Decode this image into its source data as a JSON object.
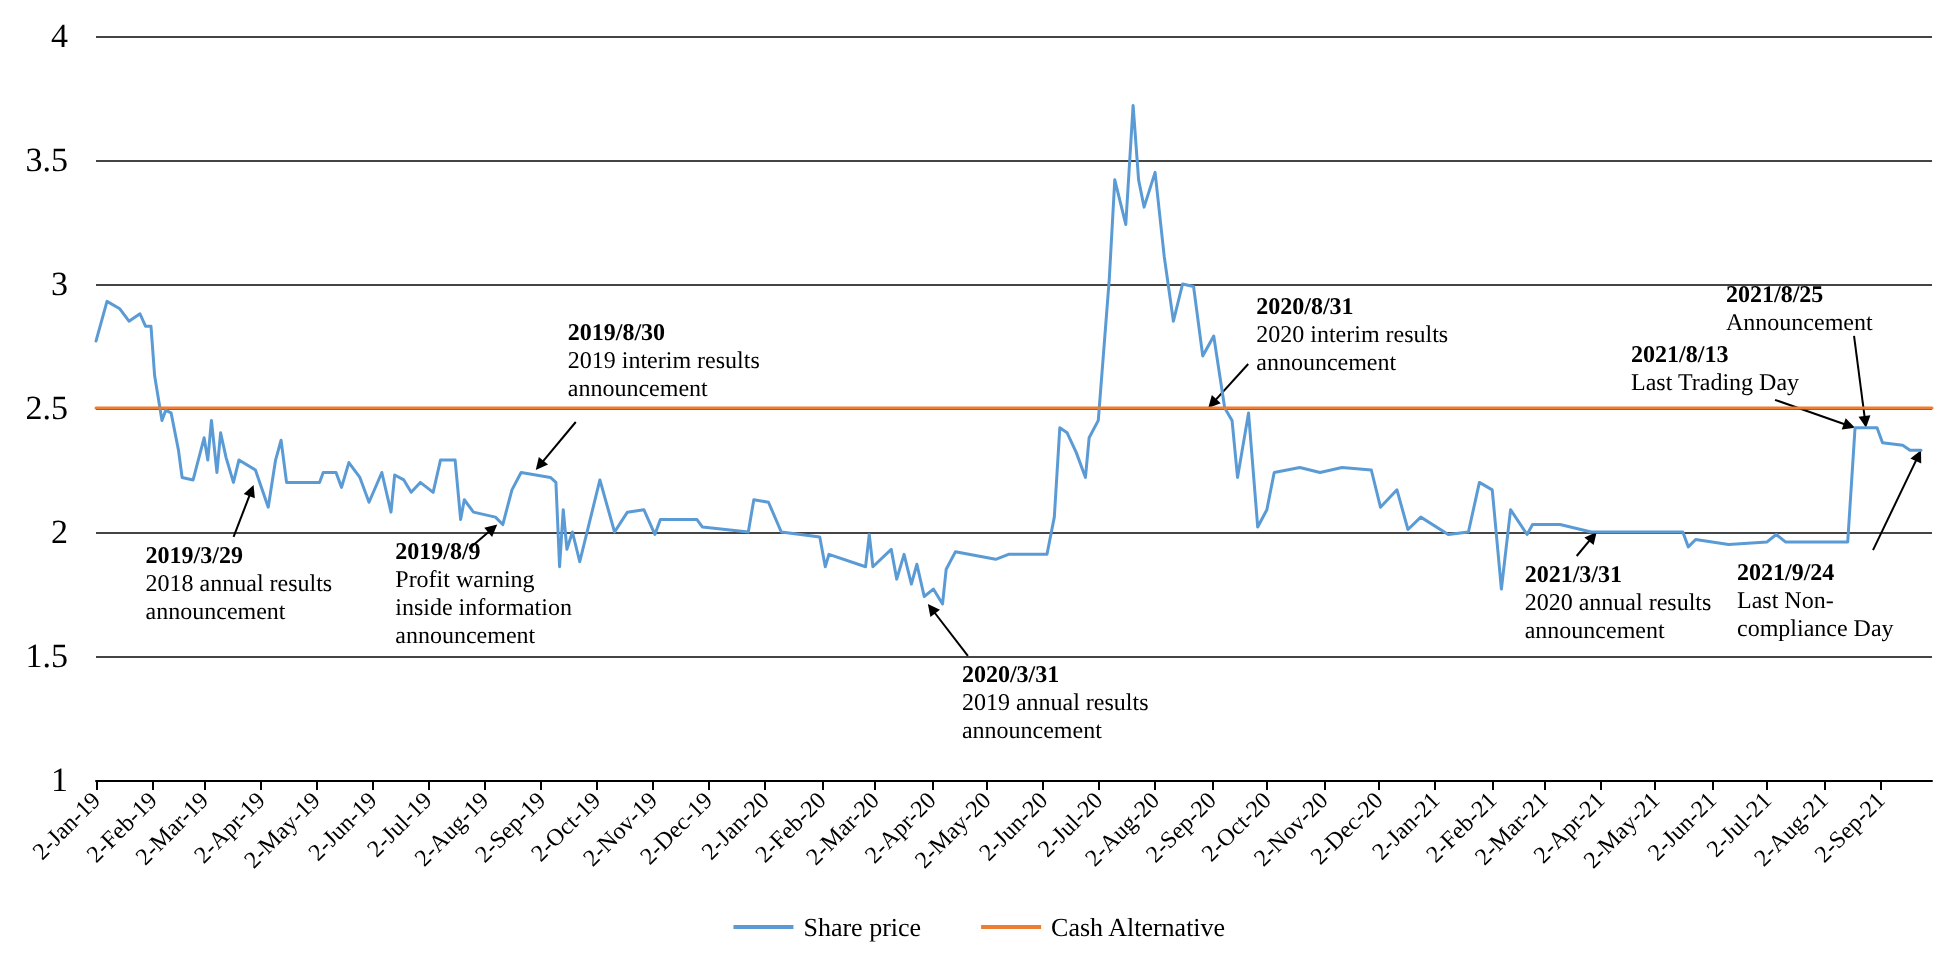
{
  "chart_data": {
    "type": "line",
    "grid": "y",
    "legend": "bottom",
    "marker": "none",
    "line_style": "solid",
    "xlim": [
      "2019-01-02",
      "2021-09-30"
    ],
    "xticks": [
      {
        "value": "2019-01-02",
        "label": "2-Jan-19"
      },
      {
        "value": "2019-02-02",
        "label": "2-Feb-19"
      },
      {
        "value": "2019-03-02",
        "label": "2-Mar-19"
      },
      {
        "value": "2019-04-02",
        "label": "2-Apr-19"
      },
      {
        "value": "2019-05-02",
        "label": "2-May-19"
      },
      {
        "value": "2019-06-02",
        "label": "2-Jun-19"
      },
      {
        "value": "2019-07-02",
        "label": "2-Jul-19"
      },
      {
        "value": "2019-08-02",
        "label": "2-Aug-19"
      },
      {
        "value": "2019-09-02",
        "label": "2-Sep-19"
      },
      {
        "value": "2019-10-02",
        "label": "2-Oct-19"
      },
      {
        "value": "2019-11-02",
        "label": "2-Nov-19"
      },
      {
        "value": "2019-12-02",
        "label": "2-Dec-19"
      },
      {
        "value": "2020-01-02",
        "label": "2-Jan-20"
      },
      {
        "value": "2020-02-02",
        "label": "2-Feb-20"
      },
      {
        "value": "2020-03-02",
        "label": "2-Mar-20"
      },
      {
        "value": "2020-04-02",
        "label": "2-Apr-20"
      },
      {
        "value": "2020-05-02",
        "label": "2-May-20"
      },
      {
        "value": "2020-06-02",
        "label": "2-Jun-20"
      },
      {
        "value": "2020-07-02",
        "label": "2-Jul-20"
      },
      {
        "value": "2020-08-02",
        "label": "2-Aug-20"
      },
      {
        "value": "2020-09-02",
        "label": "2-Sep-20"
      },
      {
        "value": "2020-10-02",
        "label": "2-Oct-20"
      },
      {
        "value": "2020-11-02",
        "label": "2-Nov-20"
      },
      {
        "value": "2020-12-02",
        "label": "2-Dec-20"
      },
      {
        "value": "2021-01-02",
        "label": "2-Jan-21"
      },
      {
        "value": "2021-02-02",
        "label": "2-Feb-21"
      },
      {
        "value": "2021-03-02",
        "label": "2-Mar-21"
      },
      {
        "value": "2021-04-02",
        "label": "2-Apr-21"
      },
      {
        "value": "2021-05-02",
        "label": "2-May-21"
      },
      {
        "value": "2021-06-02",
        "label": "2-Jun-21"
      },
      {
        "value": "2021-07-02",
        "label": "2-Jul-21"
      },
      {
        "value": "2021-08-02",
        "label": "2-Aug-21"
      },
      {
        "value": "2021-09-02",
        "label": "2-Sep-21"
      }
    ],
    "ylim": [
      1,
      4
    ],
    "yticks": [
      1,
      1.5,
      2,
      2.5,
      3,
      3.5,
      4
    ],
    "series": [
      {
        "name": "Share price",
        "color": "#5b9bd5",
        "x": [
          "2019-01-02",
          "2019-01-08",
          "2019-01-15",
          "2019-01-20",
          "2019-01-26",
          "2019-01-29",
          "2019-02-01",
          "2019-02-03",
          "2019-02-07",
          "2019-02-09",
          "2019-02-12",
          "2019-02-16",
          "2019-02-18",
          "2019-02-24",
          "2019-03-02",
          "2019-03-04",
          "2019-03-06",
          "2019-03-09",
          "2019-03-11",
          "2019-03-14",
          "2019-03-18",
          "2019-03-21",
          "2019-03-30",
          "2019-04-06",
          "2019-04-10",
          "2019-04-13",
          "2019-04-16",
          "2019-05-04",
          "2019-05-06",
          "2019-05-13",
          "2019-05-16",
          "2019-05-20",
          "2019-05-26",
          "2019-05-31",
          "2019-06-07",
          "2019-06-12",
          "2019-06-14",
          "2019-06-19",
          "2019-06-23",
          "2019-06-28",
          "2019-07-05",
          "2019-07-09",
          "2019-07-17",
          "2019-07-20",
          "2019-07-22",
          "2019-07-27",
          "2019-08-08",
          "2019-08-12",
          "2019-08-17",
          "2019-08-22",
          "2019-09-07",
          "2019-09-10",
          "2019-09-12",
          "2019-09-14",
          "2019-09-16",
          "2019-09-19",
          "2019-09-23",
          "2019-10-04",
          "2019-10-12",
          "2019-10-19",
          "2019-10-28",
          "2019-11-03",
          "2019-11-06",
          "2019-11-26",
          "2019-11-29",
          "2019-12-24",
          "2019-12-27",
          "2020-01-04",
          "2020-01-11",
          "2020-02-01",
          "2020-02-04",
          "2020-02-06",
          "2020-02-26",
          "2020-02-28",
          "2020-03-01",
          "2020-03-11",
          "2020-03-14",
          "2020-03-18",
          "2020-03-22",
          "2020-03-25",
          "2020-03-29",
          "2020-04-03",
          "2020-04-08",
          "2020-04-10",
          "2020-04-15",
          "2020-05-07",
          "2020-05-14",
          "2020-06-04",
          "2020-06-08",
          "2020-06-11",
          "2020-06-15",
          "2020-06-20",
          "2020-06-25",
          "2020-06-27",
          "2020-07-02",
          "2020-07-08",
          "2020-07-11",
          "2020-07-17",
          "2020-07-21",
          "2020-07-24",
          "2020-07-27",
          "2020-08-02",
          "2020-08-07",
          "2020-08-12",
          "2020-08-17",
          "2020-08-23",
          "2020-08-28",
          "2020-09-03",
          "2020-09-09",
          "2020-09-13",
          "2020-09-16",
          "2020-09-22",
          "2020-09-27",
          "2020-10-02",
          "2020-10-06",
          "2020-10-20",
          "2020-10-31",
          "2020-11-12",
          "2020-11-28",
          "2020-12-03",
          "2020-12-12",
          "2020-12-18",
          "2020-12-25",
          "2021-01-09",
          "2021-01-20",
          "2021-01-26",
          "2021-02-02",
          "2021-02-07",
          "2021-02-12",
          "2021-02-21",
          "2021-02-24",
          "2021-03-11",
          "2021-03-28",
          "2021-05-17",
          "2021-05-20",
          "2021-05-24",
          "2021-06-11",
          "2021-07-02",
          "2021-07-07",
          "2021-07-12",
          "2021-08-15",
          "2021-08-19",
          "2021-08-31",
          "2021-09-03",
          "2021-09-14",
          "2021-09-18",
          "2021-09-24"
        ],
        "values": [
          2.77,
          2.93,
          2.9,
          2.85,
          2.88,
          2.83,
          2.83,
          2.63,
          2.45,
          2.49,
          2.48,
          2.33,
          2.22,
          2.21,
          2.38,
          2.29,
          2.45,
          2.24,
          2.4,
          2.3,
          2.2,
          2.29,
          2.25,
          2.1,
          2.29,
          2.37,
          2.2,
          2.2,
          2.24,
          2.24,
          2.18,
          2.28,
          2.22,
          2.12,
          2.24,
          2.08,
          2.23,
          2.21,
          2.16,
          2.2,
          2.16,
          2.29,
          2.29,
          2.05,
          2.13,
          2.08,
          2.06,
          2.03,
          2.17,
          2.24,
          2.22,
          2.2,
          1.86,
          2.09,
          1.93,
          2.0,
          1.88,
          2.21,
          2.0,
          2.08,
          2.09,
          1.99,
          2.05,
          2.05,
          2.02,
          2.0,
          2.13,
          2.12,
          2.0,
          1.98,
          1.86,
          1.91,
          1.86,
          1.99,
          1.86,
          1.93,
          1.81,
          1.91,
          1.79,
          1.87,
          1.74,
          1.77,
          1.71,
          1.85,
          1.92,
          1.89,
          1.91,
          1.91,
          2.06,
          2.42,
          2.4,
          2.32,
          2.22,
          2.38,
          2.45,
          3.02,
          3.42,
          3.24,
          3.72,
          3.42,
          3.31,
          3.45,
          3.11,
          2.85,
          3.0,
          2.99,
          2.71,
          2.79,
          2.5,
          2.45,
          2.22,
          2.48,
          2.02,
          2.09,
          2.24,
          2.26,
          2.24,
          2.26,
          2.25,
          2.1,
          2.17,
          2.01,
          2.06,
          1.99,
          2.0,
          2.2,
          2.17,
          1.77,
          2.09,
          1.99,
          2.03,
          2.03,
          2.0,
          2.0,
          1.94,
          1.97,
          1.95,
          1.96,
          1.99,
          1.96,
          1.96,
          2.42,
          2.42,
          2.36,
          2.35,
          2.33,
          2.33
        ]
      },
      {
        "name": "Cash Alternative",
        "color": "#ed7d31",
        "x": [
          "2019-01-02",
          "2021-09-30"
        ],
        "values": [
          2.5,
          2.5
        ]
      }
    ],
    "annotations": [
      {
        "text": "2019/3/29\n2018 annual results\nannouncement",
        "x": "2019-03-29",
        "y": 2.19
      },
      {
        "text": "2019/8/9\nProfit warning\ninside information\nannouncement",
        "x": "2019-08-09",
        "y": 2.03
      },
      {
        "text": "2019/8/30\n2019 interim results\nannouncement",
        "x": "2019-08-30",
        "y": 2.25
      },
      {
        "text": "2020/3/31\n2019 annual results\nannouncement",
        "x": "2020-03-31",
        "y": 1.71
      },
      {
        "text": "2020/8/31\n2020 interim results\nannouncement",
        "x": "2020-08-31",
        "y": 2.5
      },
      {
        "text": "2021/3/31\n2020 annual results\nannouncement",
        "x": "2021-03-31",
        "y": 2.0
      },
      {
        "text": "2021/8/13\nLast Trading Day",
        "x": "2021-08-19",
        "y": 2.42
      },
      {
        "text": "2021/8/25\nAnnouncement",
        "x": "2021-08-25",
        "y": 2.42
      },
      {
        "text": "2021/9/24\nLast Non-\ncompliance Day",
        "x": "2021-09-24",
        "y": 2.33
      }
    ]
  }
}
